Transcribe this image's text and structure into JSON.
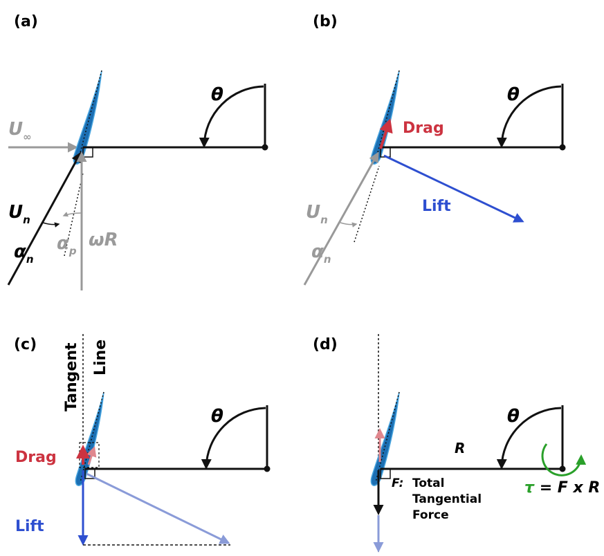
{
  "panels": [
    {
      "label": "(a)",
      "theta": "θ",
      "u_inf": {
        "base": "U",
        "sub": "∞"
      },
      "u_n": {
        "base": "U",
        "sub": "n"
      },
      "alpha_n": {
        "base": "α",
        "sub": "n"
      },
      "alpha_p": {
        "base": "α",
        "sub": "p"
      },
      "omega_r": "ωR"
    },
    {
      "label": "(b)",
      "theta": "θ",
      "drag": "Drag",
      "lift": "Lift",
      "u_n": {
        "base": "U",
        "sub": "n"
      },
      "alpha_n": {
        "base": "α",
        "sub": "n"
      }
    },
    {
      "label": "(c)",
      "theta": "θ",
      "tangent_line": [
        "Tangent",
        "Line"
      ],
      "drag": "Drag",
      "lift": "Lift"
    },
    {
      "label": "(d)",
      "theta": "θ",
      "radius": "R",
      "force_symbol": "F:",
      "force_desc": [
        "Total",
        "Tangential",
        "Force"
      ],
      "torque_symbol": "τ",
      "torque_eq": "= F x R"
    }
  ]
}
